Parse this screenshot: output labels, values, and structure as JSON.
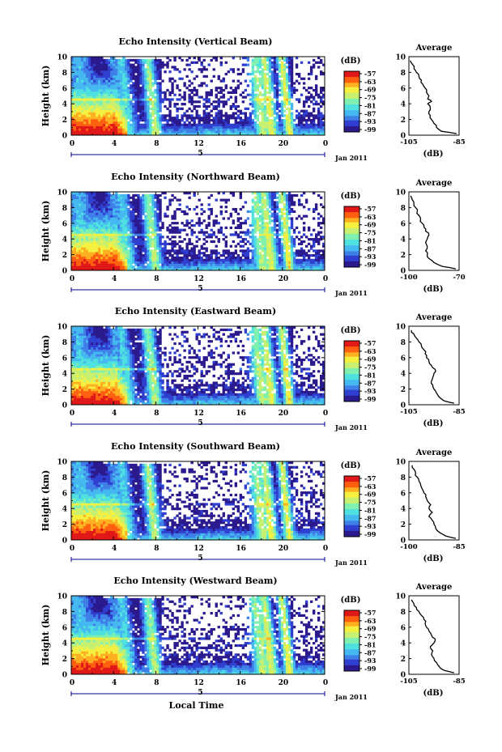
{
  "figure": {
    "date_label": "Jan 2011",
    "bottom_xlabel": "Local Time",
    "colorbar_label": "(dB)",
    "colorbar_ticks": [
      "-57",
      "-63",
      "-69",
      "-75",
      "-81",
      "-87",
      "-93",
      "-99"
    ],
    "colormap": [
      "#2a1a8e",
      "#2f3fd0",
      "#3f7fe8",
      "#45b8f0",
      "#4fe0e0",
      "#7ff0b0",
      "#c8f070",
      "#f5f040",
      "#ffb020",
      "#ff6010",
      "#e01818"
    ],
    "profile_title": "Average",
    "profile_xlabel": "(dB)"
  },
  "chart_data": [
    {
      "type": "heatmap",
      "title": "Echo Intensity (Vertical Beam)",
      "xlabel": "",
      "ylabel": "Height (km)",
      "x_ticks": [
        "0",
        "4",
        "8",
        "12",
        "16",
        "20",
        "0"
      ],
      "y_ticks": [
        "0",
        "2",
        "4",
        "6",
        "8",
        "10"
      ],
      "xlim": [
        0,
        24
      ],
      "ylim": [
        0,
        10
      ],
      "day_marker": "5",
      "colorbar": {
        "min": -99,
        "max": -57,
        "unit": "dB"
      },
      "profile": {
        "type": "line",
        "title": "Average",
        "xlabel": "(dB)",
        "x_ticks": [
          "-105",
          "-85"
        ],
        "xlim": [
          -105,
          -85
        ],
        "y_ticks": [
          "0",
          "2",
          "4",
          "6",
          "8",
          "10"
        ],
        "ylim": [
          0,
          10
        ],
        "height": [
          0.2,
          0.5,
          1,
          1.5,
          2,
          2.5,
          3,
          3.5,
          4,
          4.3,
          4.6,
          5,
          5.5,
          6,
          6.5,
          7,
          7.5,
          8,
          8.5,
          9,
          9.5
        ],
        "value": [
          -86,
          -92,
          -94,
          -95,
          -96,
          -96.5,
          -97,
          -96.5,
          -97.5,
          -96,
          -97.5,
          -97,
          -98,
          -98.5,
          -99.5,
          -100,
          -101,
          -102,
          -103,
          -103.5,
          -104.5
        ]
      }
    },
    {
      "type": "heatmap",
      "title": "Echo Intensity (Northward Beam)",
      "xlabel": "",
      "ylabel": "Height (km)",
      "x_ticks": [
        "0",
        "4",
        "8",
        "12",
        "16",
        "20",
        "0"
      ],
      "y_ticks": [
        "0",
        "2",
        "4",
        "6",
        "8",
        "10"
      ],
      "xlim": [
        0,
        24
      ],
      "ylim": [
        0,
        10
      ],
      "day_marker": "5",
      "colorbar": {
        "min": -99,
        "max": -57,
        "unit": "dB"
      },
      "profile": {
        "type": "line",
        "title": "Average",
        "xlabel": "(dB)",
        "x_ticks": [
          "-100",
          "-70"
        ],
        "xlim": [
          -100,
          -70
        ],
        "y_ticks": [
          "0",
          "2",
          "4",
          "6",
          "8",
          "10"
        ],
        "ylim": [
          0,
          10
        ],
        "height": [
          0.2,
          0.5,
          1,
          1.5,
          2,
          2.5,
          3,
          3.5,
          4,
          4.5,
          5,
          5.5,
          6,
          6.5,
          7,
          7.5,
          8,
          8.5,
          9,
          9.5
        ],
        "value": [
          -72,
          -80,
          -85,
          -88,
          -89,
          -90,
          -89,
          -90,
          -89,
          -88,
          -90,
          -91,
          -92,
          -93,
          -94,
          -95,
          -96,
          -97,
          -98,
          -99
        ]
      }
    },
    {
      "type": "heatmap",
      "title": "Echo Intensity (Eastward Beam)",
      "xlabel": "",
      "ylabel": "Height (km)",
      "x_ticks": [
        "0",
        "4",
        "8",
        "12",
        "16",
        "20",
        "0"
      ],
      "y_ticks": [
        "0",
        "2",
        "4",
        "6",
        "8",
        "10"
      ],
      "xlim": [
        0,
        24
      ],
      "ylim": [
        0,
        10
      ],
      "day_marker": "5",
      "colorbar": {
        "min": -99,
        "max": -57,
        "unit": "dB"
      },
      "profile": {
        "type": "line",
        "title": "Average",
        "xlabel": "(dB)",
        "x_ticks": [
          "-105",
          "-85"
        ],
        "xlim": [
          -105,
          -85
        ],
        "y_ticks": [
          "0",
          "2",
          "4",
          "6",
          "8",
          "10"
        ],
        "ylim": [
          0,
          10
        ],
        "height": [
          0.2,
          0.5,
          1,
          1.5,
          2,
          2.5,
          3,
          3.5,
          4,
          4.5,
          5,
          5.5,
          6,
          6.5,
          7,
          7.5,
          8,
          8.5,
          9,
          9.5
        ],
        "value": [
          -87,
          -91,
          -93,
          -94,
          -95,
          -95.5,
          -96,
          -95.5,
          -95,
          -94.5,
          -96,
          -97,
          -98,
          -98.5,
          -99,
          -100,
          -101,
          -102,
          -103,
          -104
        ]
      }
    },
    {
      "type": "heatmap",
      "title": "Echo Intensity (Southward Beam)",
      "xlabel": "",
      "ylabel": "Height (km)",
      "x_ticks": [
        "0",
        "4",
        "8",
        "12",
        "16",
        "20",
        "0"
      ],
      "y_ticks": [
        "0",
        "2",
        "4",
        "6",
        "8",
        "10"
      ],
      "xlim": [
        0,
        24
      ],
      "ylim": [
        0,
        10
      ],
      "day_marker": "5",
      "colorbar": {
        "min": -99,
        "max": -57,
        "unit": "dB"
      },
      "profile": {
        "type": "line",
        "title": "Average",
        "xlabel": "(dB)",
        "x_ticks": [
          "-100",
          "-85"
        ],
        "xlim": [
          -100,
          -85
        ],
        "y_ticks": [
          "0",
          "2",
          "4",
          "6",
          "8",
          "10"
        ],
        "ylim": [
          0,
          10
        ],
        "height": [
          0.2,
          0.5,
          1,
          1.5,
          2,
          2.5,
          3,
          3.5,
          4,
          4.5,
          5,
          5.5,
          6,
          6.5,
          7,
          7.5,
          8,
          8.5,
          9,
          9.5
        ],
        "value": [
          -86,
          -89,
          -91,
          -92,
          -92.5,
          -93,
          -94,
          -93,
          -94,
          -93.5,
          -94.5,
          -95,
          -95.5,
          -96,
          -96.5,
          -97,
          -97.5,
          -98,
          -98.5,
          -99
        ]
      }
    },
    {
      "type": "heatmap",
      "title": "Echo Intensity (Westward Beam)",
      "xlabel": "Local Time",
      "ylabel": "Height (km)",
      "x_ticks": [
        "0",
        "4",
        "8",
        "12",
        "16",
        "20",
        "0"
      ],
      "y_ticks": [
        "0",
        "2",
        "4",
        "6",
        "8",
        "10"
      ],
      "xlim": [
        0,
        24
      ],
      "ylim": [
        0,
        10
      ],
      "day_marker": "5",
      "colorbar": {
        "min": -99,
        "max": -57,
        "unit": "dB"
      },
      "profile": {
        "type": "line",
        "title": "Average",
        "xlabel": "(dB)",
        "x_ticks": [
          "-105",
          "-85"
        ],
        "xlim": [
          -105,
          -85
        ],
        "y_ticks": [
          "0",
          "2",
          "4",
          "6",
          "8",
          "10"
        ],
        "ylim": [
          0,
          10
        ],
        "height": [
          0.2,
          0.5,
          1,
          1.5,
          2,
          2.5,
          3,
          3.5,
          4,
          4.5,
          5,
          5.5,
          6,
          6.5,
          7,
          7.5,
          8,
          8.5,
          9,
          9.5
        ],
        "value": [
          -87,
          -91,
          -93,
          -94,
          -95,
          -96,
          -95.5,
          -96.5,
          -95,
          -94.5,
          -96,
          -97,
          -98,
          -98.5,
          -99,
          -100,
          -101,
          -102,
          -103,
          -104
        ]
      }
    }
  ]
}
